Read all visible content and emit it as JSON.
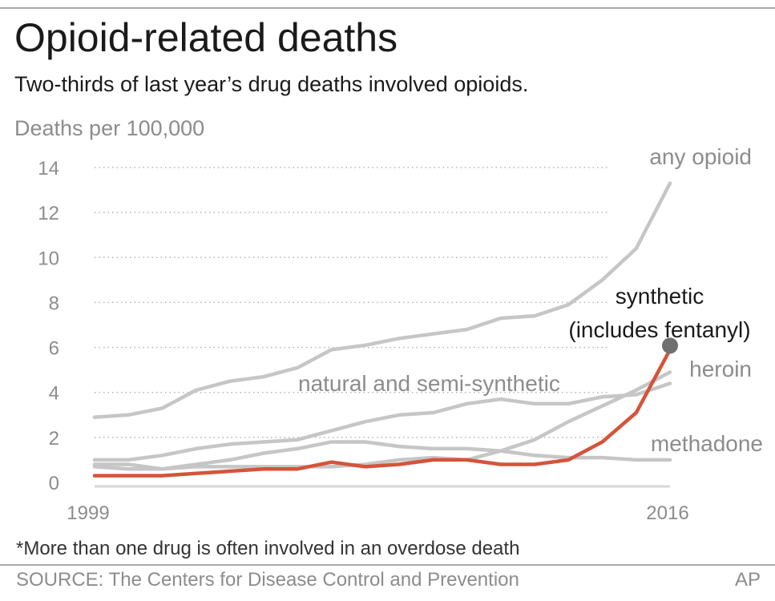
{
  "header": {
    "title": "Opioid-related deaths",
    "subtitle": "Two-thirds of last year’s drug deaths involved opioids."
  },
  "footer": {
    "footnote": "*More than one drug is often involved in an overdose death",
    "source": "SOURCE:  The Centers for Disease Control and Prevention",
    "credit": "AP"
  },
  "colors": {
    "gray_line": "#c6c6c6",
    "highlight_line": "#d4543a",
    "end_dot": "#707070",
    "label_gray": "#8c8c8c",
    "label_dark": "#1a1a1a",
    "grid": "#b5b5b5",
    "axis": "#d6d6d6"
  },
  "chart_data": {
    "type": "line",
    "title": "Opioid-related deaths",
    "subtitle": "Two-thirds of last year’s drug deaths involved opioids.",
    "ylabel": "Deaths per 100,000",
    "xlabel": "",
    "ylim": [
      0,
      14
    ],
    "yticks": [
      0,
      2,
      4,
      6,
      8,
      10,
      12,
      14
    ],
    "xlim": [
      1999,
      2016
    ],
    "xtick_labels": [
      "1999",
      "2016"
    ],
    "grid": "dotted horizontal",
    "x": [
      1999,
      2000,
      2001,
      2002,
      2003,
      2004,
      2005,
      2006,
      2007,
      2008,
      2009,
      2010,
      2011,
      2012,
      2013,
      2014,
      2015,
      2016
    ],
    "series": [
      {
        "name": "any opioid",
        "values": [
          2.9,
          3.0,
          3.3,
          4.1,
          4.5,
          4.7,
          5.1,
          5.9,
          6.1,
          6.4,
          6.6,
          6.8,
          7.3,
          7.4,
          7.9,
          9.0,
          10.4,
          13.3
        ],
        "highlight": false
      },
      {
        "name": "synthetic\n(includes fentanyl)",
        "label_lines": [
          "synthetic",
          "(includes fentanyl)"
        ],
        "values": [
          0.3,
          0.3,
          0.3,
          0.4,
          0.5,
          0.6,
          0.6,
          0.9,
          0.7,
          0.8,
          1.0,
          1.0,
          0.8,
          0.8,
          1.0,
          1.8,
          3.1,
          5.9
        ],
        "highlight": true
      },
      {
        "name": "heroin",
        "values": [
          0.7,
          0.6,
          0.6,
          0.7,
          0.7,
          0.7,
          0.7,
          0.7,
          0.8,
          1.0,
          1.1,
          1.0,
          1.4,
          1.9,
          2.7,
          3.4,
          4.1,
          4.9
        ],
        "highlight": false
      },
      {
        "name": "natural and semi-synthetic",
        "values": [
          1.0,
          1.0,
          1.2,
          1.5,
          1.7,
          1.8,
          1.9,
          2.3,
          2.7,
          3.0,
          3.1,
          3.5,
          3.7,
          3.5,
          3.5,
          3.8,
          3.9,
          4.4
        ],
        "highlight": false
      },
      {
        "name": "methadone",
        "values": [
          0.8,
          0.8,
          0.6,
          0.8,
          1.0,
          1.3,
          1.5,
          1.8,
          1.8,
          1.6,
          1.5,
          1.5,
          1.4,
          1.2,
          1.1,
          1.1,
          1.0,
          1.0
        ],
        "highlight": false
      }
    ]
  }
}
